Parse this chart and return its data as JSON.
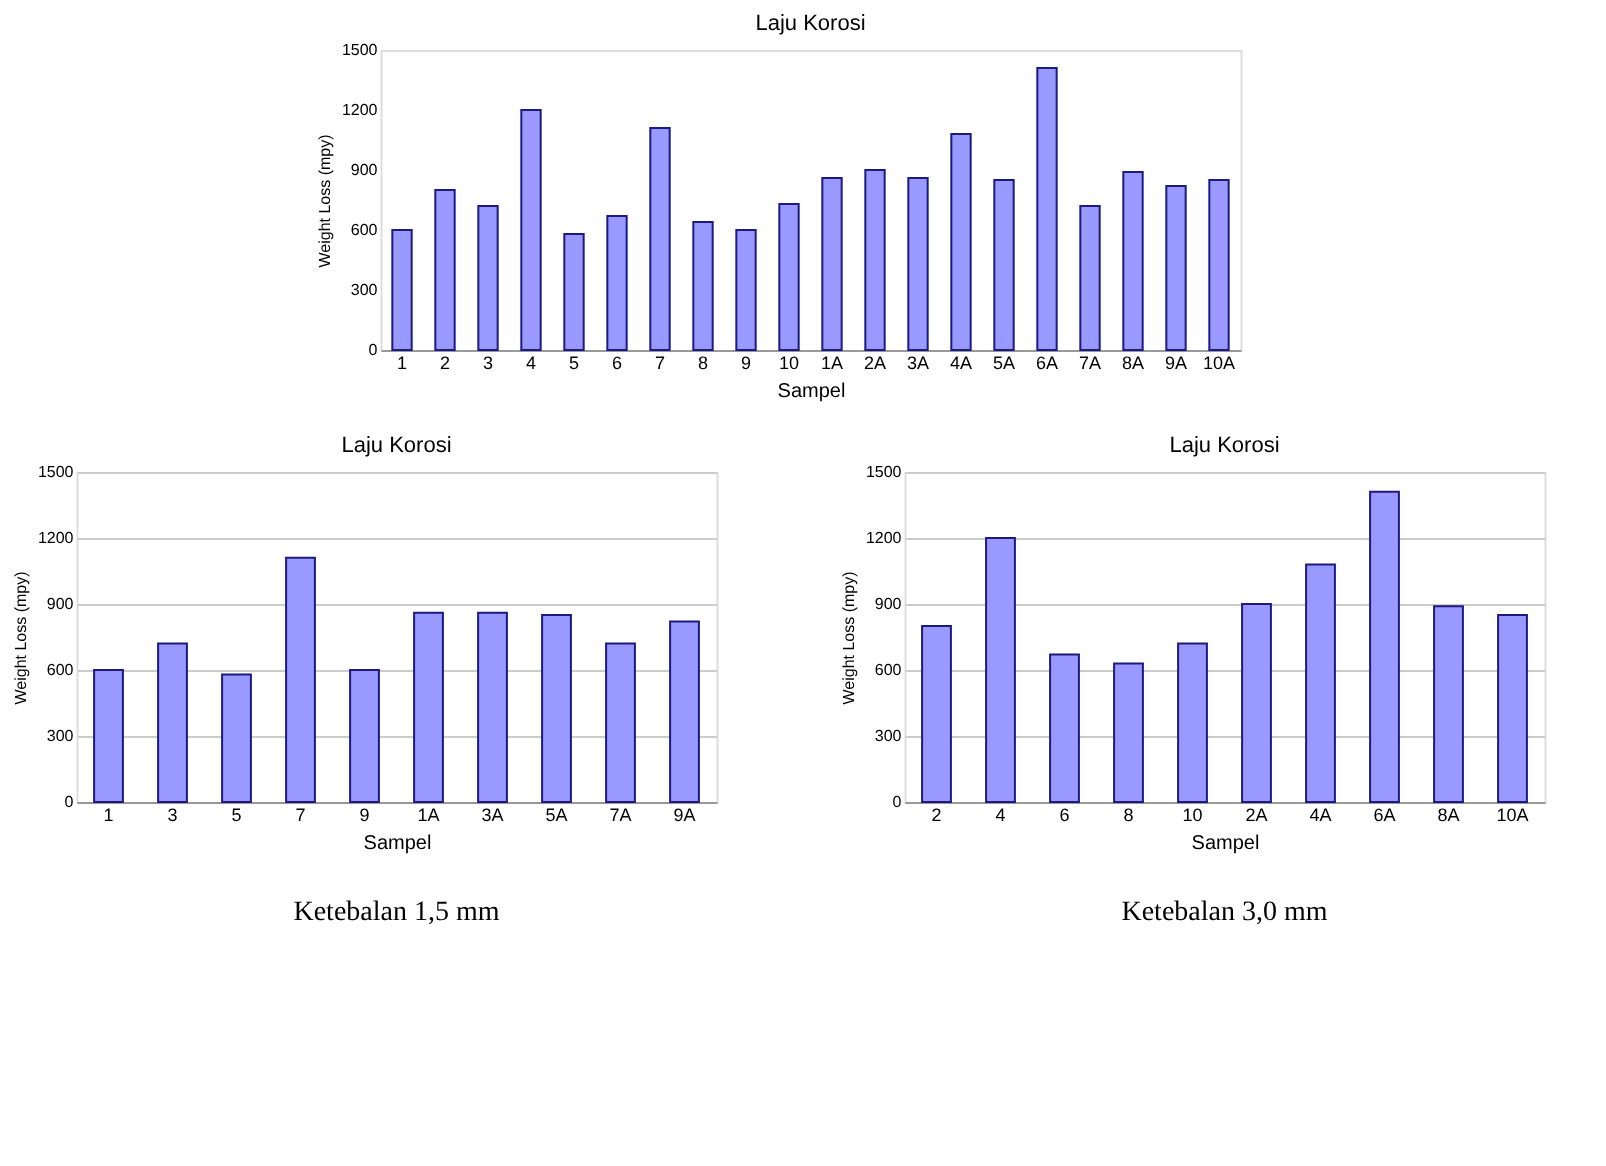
{
  "chart_data": [
    {
      "type": "bar",
      "title": "Laju Korosi",
      "xlabel": "Sampel",
      "ylabel": "Weight Loss (mpy)",
      "categories": [
        "1",
        "2",
        "3",
        "4",
        "5",
        "6",
        "7",
        "8",
        "9",
        "10",
        "1A",
        "2A",
        "3A",
        "4A",
        "5A",
        "6A",
        "7A",
        "8A",
        "9A",
        "10A"
      ],
      "values": [
        600,
        800,
        720,
        1200,
        580,
        670,
        1110,
        640,
        600,
        730,
        860,
        900,
        860,
        1080,
        850,
        1410,
        720,
        890,
        820,
        850
      ],
      "color": "#9999ff",
      "ylim": [
        0,
        1500
      ],
      "yticks": [
        0,
        300,
        600,
        900,
        1200,
        1500
      ],
      "grid": false
    },
    {
      "type": "bar",
      "title": "Laju Korosi",
      "xlabel": "Sampel",
      "ylabel": "Weight Loss (mpy)",
      "categories": [
        "1",
        "3",
        "5",
        "7",
        "9",
        "1A",
        "3A",
        "5A",
        "7A",
        "9A"
      ],
      "values": [
        600,
        720,
        580,
        1110,
        600,
        860,
        860,
        850,
        720,
        820
      ],
      "color": "#9999ff",
      "ylim": [
        0,
        1500
      ],
      "yticks": [
        0,
        300,
        600,
        900,
        1200,
        1500
      ],
      "grid": "y",
      "annotations": [
        "Ketebalan 1,5 mm"
      ]
    },
    {
      "type": "bar",
      "title": "Laju Korosi",
      "xlabel": "Sampel",
      "ylabel": "Weight Loss (mpy)",
      "categories": [
        "2",
        "4",
        "6",
        "8",
        "10",
        "2A",
        "4A",
        "6A",
        "8A",
        "10A"
      ],
      "values": [
        800,
        1200,
        670,
        630,
        720,
        900,
        1080,
        1410,
        890,
        850
      ],
      "color": "#9999ff",
      "ylim": [
        0,
        1500
      ],
      "yticks": [
        0,
        300,
        600,
        900,
        1200,
        1500
      ],
      "grid": "y",
      "annotations": [
        "Ketebalan 3,0 mm"
      ]
    }
  ]
}
